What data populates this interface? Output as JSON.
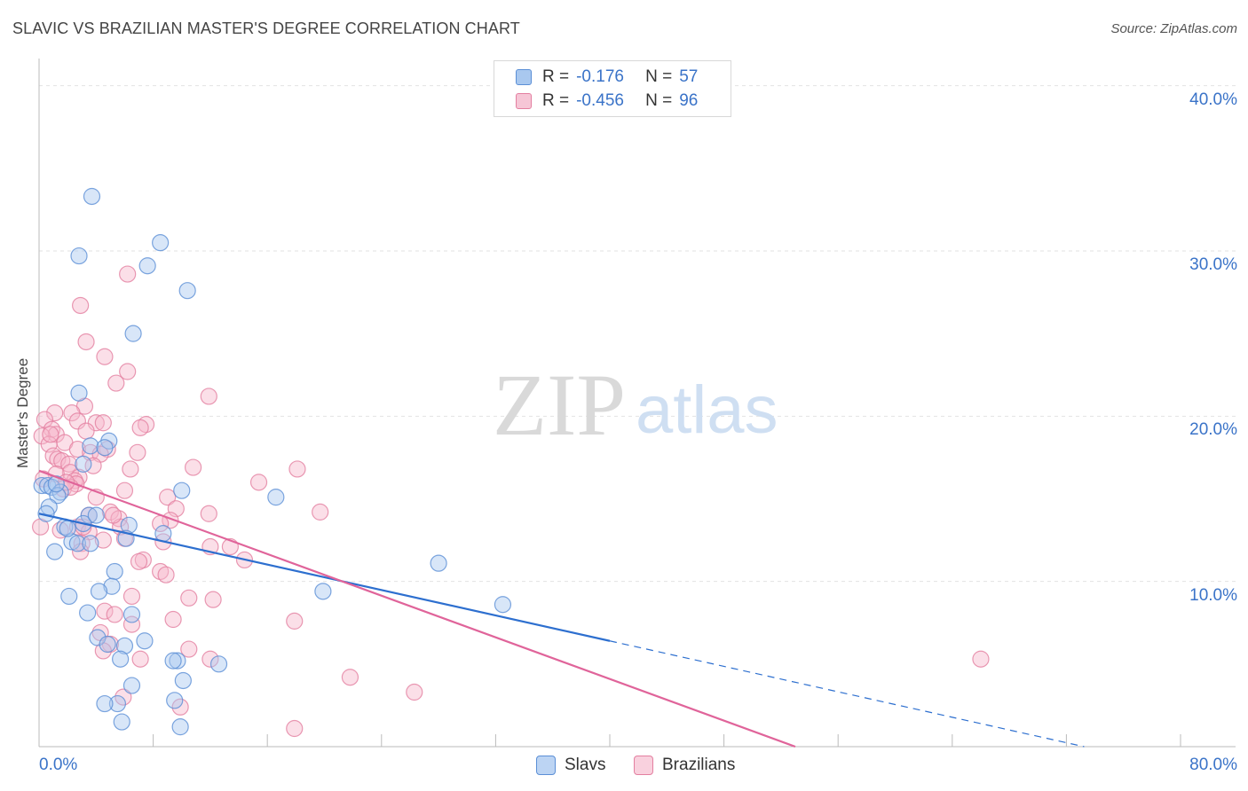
{
  "title": "SLAVIC VS BRAZILIAN MASTER'S DEGREE CORRELATION CHART",
  "source": "Source: ZipAtlas.com",
  "watermark": {
    "zip": "ZIP",
    "atlas": "atlas"
  },
  "legend_top": {
    "rows": [
      {
        "r_label": "R =",
        "r_value": "-0.176",
        "n_label": "N =",
        "n_value": "57"
      },
      {
        "r_label": "R =",
        "r_value": "-0.456",
        "n_label": "N =",
        "n_value": "96"
      }
    ]
  },
  "legend_bottom": {
    "slavs": "Slavs",
    "brazilians": "Brazilians"
  },
  "axis_labels": {
    "x_min": "0.0%",
    "x_max": "80.0%",
    "y_ticks": [
      "10.0%",
      "20.0%",
      "30.0%",
      "40.0%"
    ]
  },
  "colors": {
    "blue_fill": "#a9c8ef",
    "blue_stroke": "#5b8fd6",
    "blue_line": "#2d6fcf",
    "pink_fill": "#f6b8cb",
    "pink_stroke": "#e37fa0",
    "pink_line": "#e0649a",
    "tick_text": "#3a73c8"
  },
  "chart_data": {
    "type": "scatter",
    "title": "SLAVIC VS BRAZILIAN MASTER'S DEGREE CORRELATION CHART",
    "xlabel": "",
    "ylabel": "Master's Degree",
    "xlim": [
      0,
      80
    ],
    "ylim": [
      0,
      41
    ],
    "y_ticks": [
      10,
      20,
      30,
      40
    ],
    "series": [
      {
        "name": "Slavs",
        "r": -0.176,
        "n": 57,
        "trend": {
          "x": [
            0,
            80
          ],
          "y": [
            14.1,
            -1.3
          ],
          "solid_until_x": 40
        },
        "points": [
          [
            3.7,
            33.3
          ],
          [
            8.5,
            30.5
          ],
          [
            2.8,
            29.7
          ],
          [
            7.6,
            29.1
          ],
          [
            10.4,
            27.6
          ],
          [
            6.6,
            25.0
          ],
          [
            2.8,
            21.4
          ],
          [
            4.9,
            18.5
          ],
          [
            3.6,
            18.2
          ],
          [
            4.6,
            18.1
          ],
          [
            3.1,
            17.1
          ],
          [
            0.2,
            15.8
          ],
          [
            0.6,
            15.8
          ],
          [
            0.9,
            15.7
          ],
          [
            1.5,
            15.4
          ],
          [
            1.3,
            15.2
          ],
          [
            10.0,
            15.5
          ],
          [
            16.6,
            15.1
          ],
          [
            0.7,
            14.5
          ],
          [
            0.5,
            14.1
          ],
          [
            3.5,
            14.0
          ],
          [
            3.1,
            13.5
          ],
          [
            1.8,
            13.3
          ],
          [
            6.3,
            13.4
          ],
          [
            8.7,
            12.9
          ],
          [
            6.1,
            12.6
          ],
          [
            2.3,
            12.4
          ],
          [
            2.7,
            12.3
          ],
          [
            3.6,
            12.3
          ],
          [
            1.1,
            11.8
          ],
          [
            28.0,
            11.1
          ],
          [
            5.3,
            10.6
          ],
          [
            5.1,
            9.7
          ],
          [
            4.2,
            9.4
          ],
          [
            19.9,
            9.4
          ],
          [
            2.1,
            9.1
          ],
          [
            32.5,
            8.6
          ],
          [
            3.4,
            8.1
          ],
          [
            6.5,
            8.0
          ],
          [
            4.1,
            6.6
          ],
          [
            7.4,
            6.4
          ],
          [
            4.8,
            6.2
          ],
          [
            6.0,
            6.1
          ],
          [
            5.7,
            5.3
          ],
          [
            9.7,
            5.2
          ],
          [
            9.4,
            5.2
          ],
          [
            12.6,
            5.0
          ],
          [
            6.5,
            3.7
          ],
          [
            10.1,
            4.0
          ],
          [
            9.5,
            2.8
          ],
          [
            5.5,
            2.6
          ],
          [
            4.6,
            2.6
          ],
          [
            5.8,
            1.5
          ],
          [
            9.9,
            1.2
          ],
          [
            1.2,
            15.9
          ],
          [
            2.0,
            13.2
          ],
          [
            4.0,
            14.0
          ]
        ]
      },
      {
        "name": "Brazilians",
        "r": -0.456,
        "n": 96,
        "trend": {
          "x": [
            0,
            53
          ],
          "y": [
            16.7,
            0.0
          ]
        },
        "points": [
          [
            6.2,
            28.6
          ],
          [
            2.9,
            26.7
          ],
          [
            3.3,
            24.5
          ],
          [
            4.6,
            23.6
          ],
          [
            6.2,
            22.7
          ],
          [
            5.4,
            22.0
          ],
          [
            11.9,
            21.2
          ],
          [
            3.2,
            20.6
          ],
          [
            1.1,
            20.2
          ],
          [
            2.3,
            20.2
          ],
          [
            0.4,
            19.8
          ],
          [
            2.7,
            19.7
          ],
          [
            4.0,
            19.6
          ],
          [
            4.5,
            19.6
          ],
          [
            7.5,
            19.5
          ],
          [
            7.1,
            19.3
          ],
          [
            0.9,
            19.2
          ],
          [
            3.3,
            19.1
          ],
          [
            1.2,
            18.9
          ],
          [
            0.2,
            18.8
          ],
          [
            0.7,
            18.3
          ],
          [
            1.8,
            18.4
          ],
          [
            2.7,
            18.0
          ],
          [
            4.8,
            18.0
          ],
          [
            3.6,
            17.8
          ],
          [
            6.9,
            17.8
          ],
          [
            1.0,
            17.6
          ],
          [
            4.3,
            17.7
          ],
          [
            1.3,
            17.4
          ],
          [
            1.6,
            17.3
          ],
          [
            2.1,
            17.1
          ],
          [
            6.4,
            16.8
          ],
          [
            10.8,
            16.9
          ],
          [
            18.1,
            16.8
          ],
          [
            2.2,
            16.6
          ],
          [
            1.2,
            16.5
          ],
          [
            2.8,
            16.3
          ],
          [
            2.5,
            16.1
          ],
          [
            15.4,
            16.0
          ],
          [
            2.6,
            15.9
          ],
          [
            1.7,
            15.6
          ],
          [
            6.0,
            15.5
          ],
          [
            4.0,
            15.1
          ],
          [
            9.0,
            15.1
          ],
          [
            9.6,
            14.4
          ],
          [
            19.7,
            14.2
          ],
          [
            11.9,
            14.1
          ],
          [
            5.0,
            14.2
          ],
          [
            3.5,
            14.0
          ],
          [
            5.6,
            13.8
          ],
          [
            9.2,
            13.7
          ],
          [
            8.5,
            13.5
          ],
          [
            2.7,
            13.3
          ],
          [
            5.7,
            13.3
          ],
          [
            3.5,
            13.0
          ],
          [
            6.0,
            12.6
          ],
          [
            4.5,
            12.5
          ],
          [
            3.0,
            12.3
          ],
          [
            8.7,
            12.4
          ],
          [
            12.0,
            12.1
          ],
          [
            13.4,
            12.1
          ],
          [
            2.9,
            11.8
          ],
          [
            14.4,
            11.3
          ],
          [
            7.3,
            11.3
          ],
          [
            7.0,
            11.2
          ],
          [
            8.5,
            10.6
          ],
          [
            8.9,
            10.4
          ],
          [
            6.5,
            9.1
          ],
          [
            10.5,
            9.0
          ],
          [
            12.2,
            8.9
          ],
          [
            4.6,
            8.2
          ],
          [
            5.3,
            8.0
          ],
          [
            9.4,
            7.7
          ],
          [
            17.9,
            7.6
          ],
          [
            6.5,
            7.4
          ],
          [
            4.3,
            6.9
          ],
          [
            5.0,
            6.2
          ],
          [
            4.5,
            5.8
          ],
          [
            10.5,
            5.9
          ],
          [
            7.1,
            5.3
          ],
          [
            12.0,
            5.3
          ],
          [
            66.0,
            5.3
          ],
          [
            21.8,
            4.2
          ],
          [
            26.3,
            3.3
          ],
          [
            5.9,
            3.0
          ],
          [
            9.9,
            2.4
          ],
          [
            17.9,
            1.1
          ],
          [
            0.1,
            13.3
          ],
          [
            0.3,
            16.2
          ],
          [
            1.5,
            13.1
          ],
          [
            0.8,
            18.9
          ],
          [
            3.1,
            13.3
          ],
          [
            2.2,
            15.7
          ],
          [
            1.9,
            16.0
          ],
          [
            3.8,
            17.0
          ],
          [
            5.2,
            14.0
          ]
        ]
      }
    ]
  }
}
